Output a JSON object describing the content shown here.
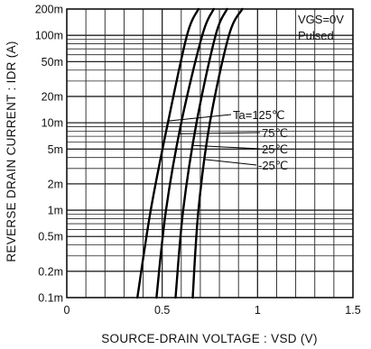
{
  "chart_data": {
    "type": "line",
    "xlabel": "SOURCE-DRAIN VOLTAGE : VSD  (V)",
    "ylabel": "REVERSE  DRAIN  CURRENT : IDR  (A)",
    "xlim": [
      0,
      1.5
    ],
    "ylim": [
      0.0001,
      0.2
    ],
    "y_scale": "log",
    "grid": true,
    "x_ticks": [
      {
        "value": 0,
        "label": "0"
      },
      {
        "value": 0.5,
        "label": "0.5"
      },
      {
        "value": 1.0,
        "label": "1"
      },
      {
        "value": 1.5,
        "label": "1.5"
      }
    ],
    "y_ticks": [
      {
        "value": 0.2,
        "label": "200m"
      },
      {
        "value": 0.1,
        "label": "100m"
      },
      {
        "value": 0.05,
        "label": "50m"
      },
      {
        "value": 0.02,
        "label": "20m"
      },
      {
        "value": 0.01,
        "label": "10m"
      },
      {
        "value": 0.005,
        "label": "5m"
      },
      {
        "value": 0.002,
        "label": "2m"
      },
      {
        "value": 0.001,
        "label": "1m"
      },
      {
        "value": 0.0005,
        "label": "0.5m"
      },
      {
        "value": 0.0002,
        "label": "0.2m"
      },
      {
        "value": 0.0001,
        "label": "0.1m"
      }
    ],
    "conditions": [
      "VGS=0V",
      "Pulsed"
    ],
    "series": [
      {
        "name": "Ta=125℃",
        "points": [
          [
            0.37,
            0.0001
          ],
          [
            0.44,
            0.001
          ],
          [
            0.53,
            0.01
          ],
          [
            0.63,
            0.1
          ],
          [
            0.69,
            0.2
          ]
        ]
      },
      {
        "name": "75℃",
        "points": [
          [
            0.47,
            0.0001
          ],
          [
            0.52,
            0.001
          ],
          [
            0.6,
            0.01
          ],
          [
            0.71,
            0.1
          ],
          [
            0.77,
            0.2
          ]
        ]
      },
      {
        "name": "25℃",
        "points": [
          [
            0.57,
            0.0001
          ],
          [
            0.61,
            0.001
          ],
          [
            0.68,
            0.01
          ],
          [
            0.78,
            0.1
          ],
          [
            0.84,
            0.2
          ]
        ]
      },
      {
        "name": "-25℃",
        "points": [
          [
            0.66,
            0.0001
          ],
          [
            0.69,
            0.001
          ],
          [
            0.75,
            0.01
          ],
          [
            0.85,
            0.1
          ],
          [
            0.92,
            0.2
          ]
        ]
      }
    ]
  }
}
